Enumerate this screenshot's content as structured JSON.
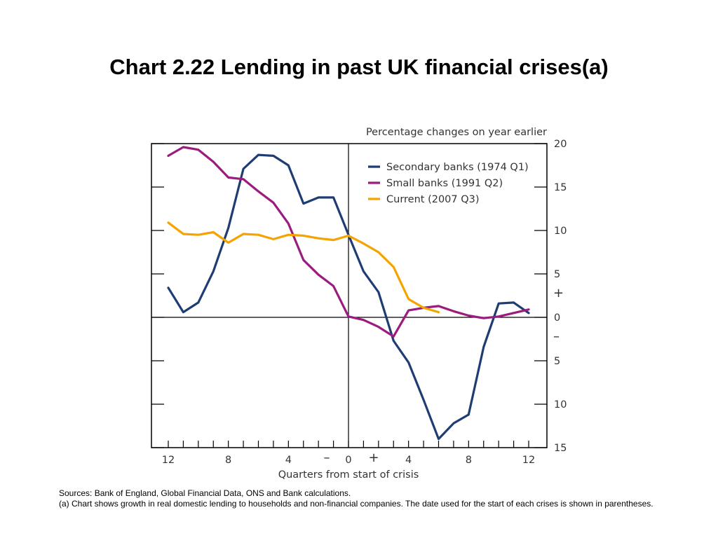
{
  "title": "Chart 2.22  Lending in past UK financial crises(a)",
  "footnotes": {
    "sources": "Sources:  Bank of England, Global Financial Data, ONS and Bank calculations.",
    "note": "(a) Chart shows growth in real domestic lending to households and non-financial companies.  The date used for the start of each crises is shown in parentheses."
  },
  "chart_data": {
    "type": "line",
    "units_label": "Percentage changes on year earlier",
    "xlabel": "Quarters from start of crisis",
    "ylabel": "",
    "xlim": [
      -12,
      12
    ],
    "ylim": [
      -15,
      20
    ],
    "x_tick_labels": [
      {
        "x": -12,
        "label": "12"
      },
      {
        "x": -8,
        "label": "8"
      },
      {
        "x": -4,
        "label": "4"
      },
      {
        "x": 0,
        "label": "0"
      },
      {
        "x": 4,
        "label": "4"
      },
      {
        "x": 8,
        "label": "8"
      },
      {
        "x": 12,
        "label": "12"
      }
    ],
    "y_tick_labels": [
      {
        "y": 20,
        "label": "20"
      },
      {
        "y": 15,
        "label": "15"
      },
      {
        "y": 10,
        "label": "10"
      },
      {
        "y": 5,
        "label": "5"
      },
      {
        "y": 0,
        "label": "0"
      },
      {
        "y": -5,
        "label": "5"
      },
      {
        "y": -10,
        "label": "10"
      },
      {
        "y": -15,
        "label": "15"
      }
    ],
    "y_sign_labels": {
      "positive": "+",
      "negative": "–"
    },
    "x_sign_labels": {
      "negative": "–",
      "positive": "+"
    },
    "legend_position": "top-right",
    "series": [
      {
        "name": "Secondary banks (1974 Q1)",
        "color": "#1f3d73",
        "x": [
          -12,
          -11,
          -10,
          -9,
          -8,
          -7,
          -6,
          -5,
          -4,
          -3,
          -2,
          -1,
          0,
          1,
          2,
          3,
          4,
          5,
          6,
          7,
          8,
          9,
          10,
          11,
          12
        ],
        "values": [
          3.4,
          0.6,
          1.7,
          5.3,
          10.3,
          17.1,
          18.7,
          18.6,
          17.5,
          13.1,
          13.8,
          13.8,
          9.5,
          5.3,
          2.9,
          -2.7,
          -5.2,
          -9.5,
          -14.0,
          -12.2,
          -11.2,
          -3.4,
          1.6,
          1.7,
          0.5
        ]
      },
      {
        "name": "Small banks (1991 Q2)",
        "color": "#9b1b7e",
        "x": [
          -12,
          -11,
          -10,
          -9,
          -8,
          -7,
          -6,
          -5,
          -4,
          -3,
          -2,
          -1,
          0,
          1,
          2,
          3,
          4,
          5,
          6,
          7,
          8,
          9,
          10,
          11,
          12
        ],
        "values": [
          18.6,
          19.6,
          19.3,
          17.9,
          16.1,
          15.9,
          14.5,
          13.2,
          10.8,
          6.6,
          4.9,
          3.6,
          0.1,
          -0.3,
          -1.1,
          -2.2,
          0.8,
          1.1,
          1.3,
          0.7,
          0.2,
          -0.1,
          0.1,
          0.5,
          0.9
        ]
      },
      {
        "name": "Current (2007 Q3)",
        "color": "#f5a300",
        "x": [
          -12,
          -11,
          -10,
          -9,
          -8,
          -7,
          -6,
          -5,
          -4,
          -3,
          -2,
          -1,
          0,
          1,
          2,
          3,
          4,
          5,
          6
        ],
        "values": [
          10.9,
          9.6,
          9.5,
          9.8,
          8.6,
          9.6,
          9.5,
          9.0,
          9.5,
          9.4,
          9.1,
          8.9,
          9.4,
          8.5,
          7.5,
          5.8,
          2.1,
          1.1,
          0.6
        ]
      }
    ]
  }
}
